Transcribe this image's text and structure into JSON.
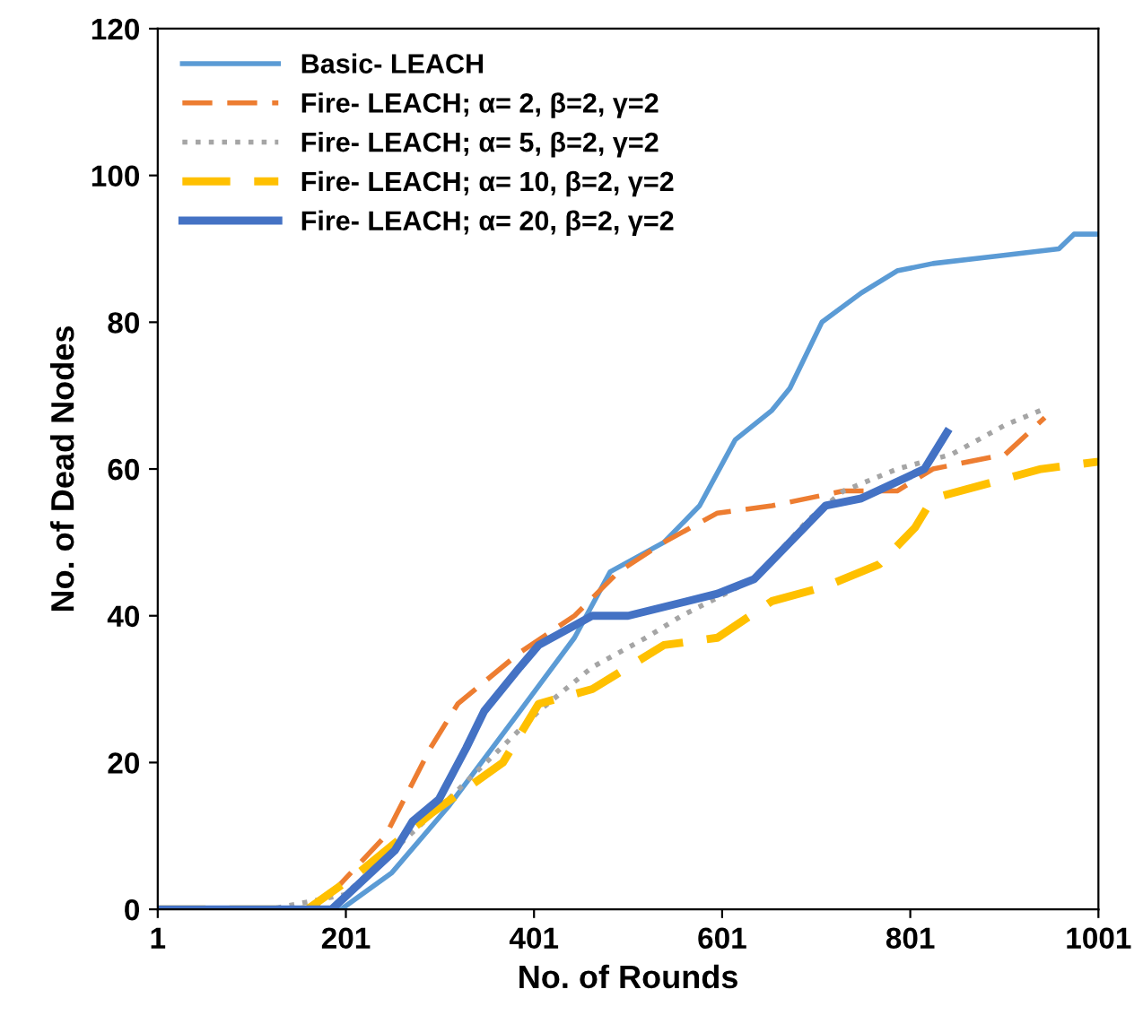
{
  "chart_data": {
    "type": "line",
    "xlabel": "No. of Rounds",
    "ylabel": "No. of Dead Nodes",
    "xlim": [
      1,
      1001
    ],
    "xticks": [
      1,
      201,
      401,
      601,
      801,
      1001
    ],
    "ylim": [
      0,
      120
    ],
    "yticks": [
      0,
      20,
      40,
      60,
      80,
      100,
      120
    ],
    "grid": false,
    "legend": "top left",
    "marker": "none",
    "series": [
      {
        "name": "Basic- LEACH",
        "color": "#5b9bd5",
        "line_style": "solid",
        "x": [
          1,
          196,
          250,
          310,
          386,
          444,
          482,
          539,
          577,
          615,
          654,
          673,
          707,
          749,
          787,
          825,
          892,
          959,
          975,
          1001
        ],
        "values": [
          0,
          0,
          5,
          14,
          27,
          37,
          46,
          50,
          55,
          64,
          68,
          71,
          80,
          84,
          87,
          88,
          89,
          90,
          92,
          92
        ]
      },
      {
        "name": "Fire- LEACH; α= 2, β=2, γ=2",
        "color": "#ed7d31",
        "line_style": "dashed",
        "x": [
          1,
          170,
          243,
          291,
          320,
          386,
          444,
          491,
          539,
          596,
          654,
          730,
          787,
          825,
          902,
          944
        ],
        "values": [
          0,
          0,
          10,
          22,
          28,
          35,
          40,
          46,
          50,
          54,
          55,
          57,
          57,
          60,
          62,
          67
        ]
      },
      {
        "name": "Fire- LEACH; α= 5, β=2, γ=2",
        "color": "#a5a5a5",
        "line_style": "dotted",
        "x": [
          1,
          120,
          200,
          310,
          406,
          463,
          520,
          558,
          635,
          692,
          730,
          787,
          845,
          902,
          940
        ],
        "values": [
          0,
          0,
          2,
          15,
          27,
          33,
          37,
          40,
          45,
          53,
          57,
          60,
          62,
          66,
          68
        ]
      },
      {
        "name": "Fire- LEACH; α= 10, β=2, γ=2",
        "color": "#ffc000",
        "line_style": "dashed",
        "x": [
          1,
          160,
          215,
          291,
          368,
          406,
          463,
          539,
          596,
          654,
          711,
          768,
          806,
          825,
          883,
          940,
          1001
        ],
        "values": [
          0,
          0,
          5,
          13,
          20,
          28,
          30,
          36,
          37,
          42,
          44,
          47,
          52,
          56,
          58,
          60,
          61
        ]
      },
      {
        "name": "Fire- LEACH; α= 20, β=2, γ=2",
        "color": "#4472c4",
        "line_style": "solid",
        "x": [
          1,
          186,
          253,
          272,
          300,
          329,
          348,
          386,
          406,
          463,
          501,
          596,
          635,
          673,
          711,
          749,
          816,
          840
        ],
        "values": [
          0,
          0,
          8,
          12,
          15,
          22,
          27,
          33,
          36,
          40,
          40,
          43,
          45,
          50,
          55,
          56,
          60,
          65
        ]
      }
    ]
  }
}
